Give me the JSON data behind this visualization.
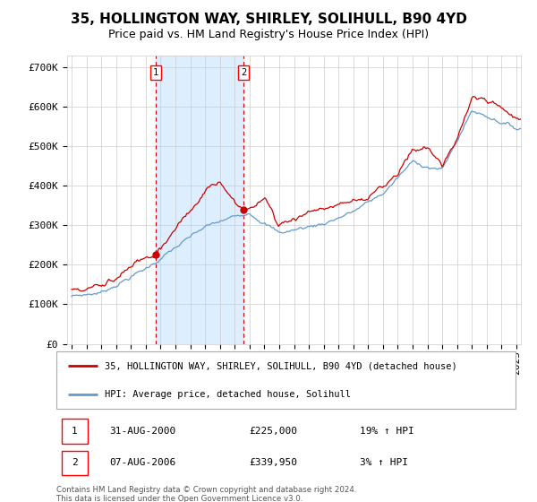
{
  "title": "35, HOLLINGTON WAY, SHIRLEY, SOLIHULL, B90 4YD",
  "subtitle": "Price paid vs. HM Land Registry's House Price Index (HPI)",
  "legend_line1": "35, HOLLINGTON WAY, SHIRLEY, SOLIHULL, B90 4YD (detached house)",
  "legend_line2": "HPI: Average price, detached house, Solihull",
  "footer": "Contains HM Land Registry data © Crown copyright and database right 2024.\nThis data is licensed under the Open Government Licence v3.0.",
  "annotation1": {
    "label": "1",
    "date_str": "31-AUG-2000",
    "price_str": "£225,000",
    "pct_str": "19% ↑ HPI"
  },
  "annotation2": {
    "label": "2",
    "date_str": "07-AUG-2006",
    "price_str": "£339,950",
    "pct_str": "3% ↑ HPI"
  },
  "red_color": "#cc0000",
  "blue_color": "#6699cc",
  "shading_color": "#ddeeff",
  "dashed_color": "#cc0000",
  "grid_color": "#cccccc",
  "background_color": "#ffffff",
  "ylim": [
    0,
    730000
  ],
  "yticks": [
    0,
    100000,
    200000,
    300000,
    400000,
    500000,
    600000,
    700000
  ],
  "ytick_labels": [
    "£0",
    "£100K",
    "£200K",
    "£300K",
    "£400K",
    "£500K",
    "£600K",
    "£700K"
  ],
  "x_start_year": 1995,
  "x_end_year": 2025,
  "sale1_year": 2000.667,
  "sale1_price": 225000,
  "sale2_year": 2006.583,
  "sale2_price": 339950,
  "title_fontsize": 11,
  "subtitle_fontsize": 9,
  "tick_fontsize": 8,
  "label_fontsize": 8
}
